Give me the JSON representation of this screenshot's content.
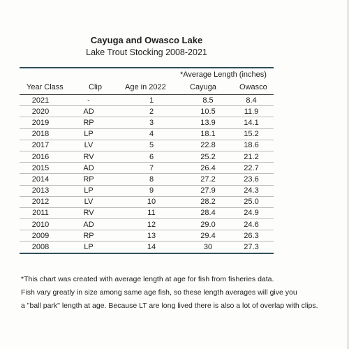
{
  "title": "Cayuga and Owasco Lake",
  "subtitle": "Lake Trout Stocking 2008-2021",
  "group_header": "*Average Length (inches)",
  "headers": {
    "year_class": "Year Class",
    "clip": "Clip",
    "age": "Age in 2022",
    "cayuga": "Cayuga",
    "owasco": "Owasco"
  },
  "rows": [
    {
      "year": "2021",
      "clip": "-",
      "age": "1",
      "cayuga": "8.5",
      "owasco": "8.4"
    },
    {
      "year": "2020",
      "clip": "AD",
      "age": "2",
      "cayuga": "10.5",
      "owasco": "11.9"
    },
    {
      "year": "2019",
      "clip": "RP",
      "age": "3",
      "cayuga": "13.9",
      "owasco": "14.1"
    },
    {
      "year": "2018",
      "clip": "LP",
      "age": "4",
      "cayuga": "18.1",
      "owasco": "15.2"
    },
    {
      "year": "2017",
      "clip": "LV",
      "age": "5",
      "cayuga": "22.8",
      "owasco": "18.6"
    },
    {
      "year": "2016",
      "clip": "RV",
      "age": "6",
      "cayuga": "25.2",
      "owasco": "21.2"
    },
    {
      "year": "2015",
      "clip": "AD",
      "age": "7",
      "cayuga": "26.4",
      "owasco": "22.7"
    },
    {
      "year": "2014",
      "clip": "RP",
      "age": "8",
      "cayuga": "27.2",
      "owasco": "23.6"
    },
    {
      "year": "2013",
      "clip": "LP",
      "age": "9",
      "cayuga": "27.9",
      "owasco": "24.3"
    },
    {
      "year": "2012",
      "clip": "LV",
      "age": "10",
      "cayuga": "28.2",
      "owasco": "25.0"
    },
    {
      "year": "2011",
      "clip": "RV",
      "age": "11",
      "cayuga": "28.4",
      "owasco": "24.9"
    },
    {
      "year": "2010",
      "clip": "AD",
      "age": "12",
      "cayuga": "29.0",
      "owasco": "24.6"
    },
    {
      "year": "2009",
      "clip": "RP",
      "age": "13",
      "cayuga": "29.4",
      "owasco": "26.3"
    },
    {
      "year": "2008",
      "clip": "LP",
      "age": "14",
      "cayuga": "30",
      "owasco": "27.3"
    }
  ],
  "footnote": [
    "*This chart was created with average length at age for fish from fisheries data.",
    "Fish vary greatly in size among same age fish, so these length averages will give you",
    "a \"ball park\" length at age. Because LT are long lived there is also a lot of overlap with clips."
  ]
}
